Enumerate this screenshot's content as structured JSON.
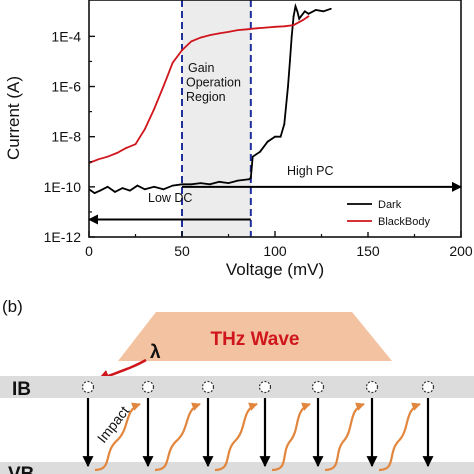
{
  "chart_data": {
    "type": "line",
    "xlabel": "Voltage (mV)",
    "ylabel": "Current (A)",
    "xlim": [
      0,
      200
    ],
    "ylim_log10": [
      -12,
      -3
    ],
    "log_y": true,
    "x_ticks": [
      0,
      50,
      100,
      150,
      200
    ],
    "x_tick_labels": [
      "0",
      "50",
      "100",
      "150",
      "200"
    ],
    "y_ticks_log10": [
      -12,
      -10,
      -8,
      -6,
      -4
    ],
    "y_tick_labels": [
      "1E-12",
      "1E-10",
      "1E-8",
      "1E-6",
      "1E-4"
    ],
    "grid": false,
    "legend_position": "bottom-right",
    "series": [
      {
        "name": "Dark",
        "color": "#000000",
        "x": [
          0,
          3,
          6,
          10,
          14,
          18,
          22,
          26,
          30,
          35,
          40,
          45,
          50,
          55,
          60,
          65,
          70,
          75,
          80,
          86,
          87,
          88,
          92,
          96,
          100,
          103,
          105,
          107,
          108,
          109,
          110,
          111,
          112,
          113,
          114,
          116,
          118,
          122,
          126,
          130
        ],
        "y_log10": [
          -10.1,
          -10.25,
          -10.15,
          -10.0,
          -10.2,
          -10.05,
          -10.15,
          -9.95,
          -10.1,
          -10.0,
          -10.1,
          -9.95,
          -9.9,
          -9.9,
          -9.85,
          -9.9,
          -9.8,
          -9.85,
          -9.75,
          -9.7,
          -9.65,
          -8.8,
          -8.6,
          -8.2,
          -8.0,
          -8.0,
          -7.5,
          -6.0,
          -5.0,
          -4.0,
          -3.2,
          -2.8,
          -3.0,
          -3.3,
          -3.2,
          -3.0,
          -3.1,
          -2.95,
          -3.0,
          -2.9
        ]
      },
      {
        "name": "BlackBody",
        "color": "#d0161d",
        "x": [
          0,
          5,
          10,
          15,
          20,
          25,
          30,
          35,
          40,
          45,
          50,
          55,
          60,
          65,
          70,
          75,
          80,
          85,
          90,
          95,
          100,
          105,
          110,
          115,
          118
        ],
        "y_log10": [
          -9.05,
          -8.9,
          -8.8,
          -8.65,
          -8.45,
          -8.3,
          -7.7,
          -6.9,
          -6.0,
          -5.05,
          -4.55,
          -4.2,
          -4.05,
          -3.95,
          -3.88,
          -3.82,
          -3.75,
          -3.72,
          -3.68,
          -3.65,
          -3.62,
          -3.6,
          -3.55,
          -3.35,
          -3.2
        ]
      }
    ],
    "shaded_region": {
      "x": [
        50,
        87
      ],
      "label_lines": [
        "Gain",
        "Operation",
        "Region"
      ]
    },
    "vertical_lines": [
      50,
      87
    ],
    "annotations": [
      {
        "text": "Low DC",
        "arrow_from": 87,
        "arrow_to": 0,
        "y_log10": -11.3
      },
      {
        "text": "High PC",
        "arrow_from": 50,
        "arrow_to": 200,
        "y_log10": -10.0
      }
    ]
  },
  "diagram": {
    "panel_label": "(b)",
    "wave_label": "THz  Wave",
    "lambda_label": "λ",
    "ib_label": "IB",
    "vb_label": "VB",
    "impact_label": "Impact",
    "colors": {
      "wave_fill": "#f3c2a0",
      "wave_text": "#d0161d",
      "band_fill": "#dcdcdc",
      "curve": "#e2863e",
      "arrow": "#000000",
      "lambda_arrow": "#d0161d"
    }
  }
}
